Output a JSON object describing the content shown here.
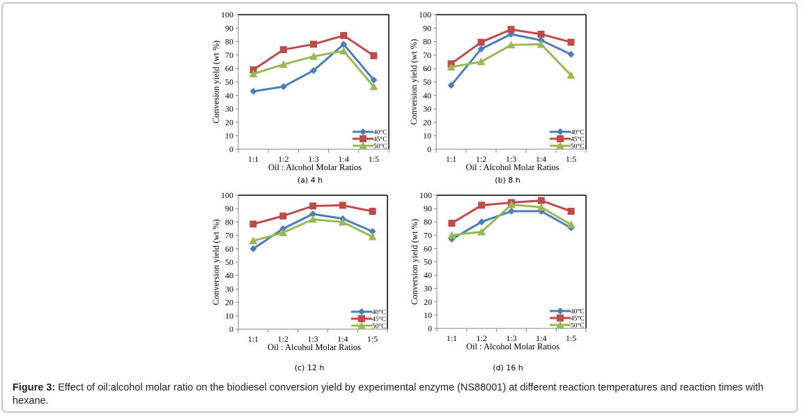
{
  "figure": {
    "caption_label": "Figure 3:",
    "caption_text": " Effect of oil:alcohol molar ratio on the biodiesel conversion yield by experimental enzyme (NS88001) at different reaction temperatures and reaction times with hexane."
  },
  "colors": {
    "40°C": "#4a7ebb",
    "45°C": "#be4b48",
    "50°C": "#98b954"
  },
  "chart_data": [
    {
      "type": "line",
      "title": "(a) 4 h",
      "xlabel": "Oil : Alcohol Molar Ratios",
      "ylabel": "Convesion yield (wt %)",
      "categories": [
        "1:1",
        "1:2",
        "1:3",
        "1:4",
        "1:5"
      ],
      "ylim": [
        0,
        100
      ],
      "yticks": [
        0,
        10,
        20,
        30,
        40,
        50,
        60,
        70,
        80,
        90,
        100
      ],
      "grid": false,
      "legend": "bottom-right",
      "series": [
        {
          "name": "40°C",
          "marker": "diamond",
          "values": [
            43,
            46.5,
            58.5,
            78,
            51.5
          ]
        },
        {
          "name": "45°C",
          "marker": "square",
          "values": [
            59,
            74,
            78,
            84.5,
            69.5
          ]
        },
        {
          "name": "50°C",
          "marker": "triangle",
          "values": [
            56,
            63,
            69,
            73,
            46.5
          ]
        }
      ]
    },
    {
      "type": "line",
      "title": "(b) 8 h",
      "xlabel": "Oil : Alcohol Molar Ratios",
      "ylabel": "Conversion yield (wt %)",
      "categories": [
        "1:1",
        "1:2",
        "1:3",
        "1:4",
        "1:5"
      ],
      "ylim": [
        0,
        100
      ],
      "yticks": [
        0,
        10,
        20,
        30,
        40,
        50,
        60,
        70,
        80,
        90,
        100
      ],
      "grid": false,
      "legend": "bottom-right",
      "series": [
        {
          "name": "40°C",
          "marker": "diamond",
          "values": [
            47.5,
            74.5,
            85.5,
            81,
            70.5
          ]
        },
        {
          "name": "45°C",
          "marker": "square",
          "values": [
            63.5,
            79.5,
            89,
            85.5,
            79.5
          ]
        },
        {
          "name": "50°C",
          "marker": "triangle",
          "values": [
            61,
            65,
            77.5,
            78,
            55
          ]
        }
      ]
    },
    {
      "type": "line",
      "title": "(c) 12 h",
      "xlabel": "Oil : Alcohol Molar Ratios",
      "ylabel": "Conversion yield (wt %)",
      "categories": [
        "1:1",
        "1:2",
        "1:3",
        "1:4",
        "1:5"
      ],
      "ylim": [
        0,
        100
      ],
      "yticks": [
        0,
        10,
        20,
        30,
        40,
        50,
        60,
        70,
        80,
        90,
        100
      ],
      "grid": false,
      "legend": "bottom-right",
      "series": [
        {
          "name": "40°C",
          "marker": "diamond",
          "values": [
            60,
            75,
            86,
            82.5,
            73
          ]
        },
        {
          "name": "45°C",
          "marker": "square",
          "values": [
            78.5,
            84.5,
            92,
            92.5,
            88
          ]
        },
        {
          "name": "50°C",
          "marker": "triangle",
          "values": [
            66,
            72,
            82,
            80,
            69
          ]
        }
      ]
    },
    {
      "type": "line",
      "title": "(d) 16 h",
      "xlabel": "Oil : Alcohol Molar Ratios",
      "ylabel": "Conversion yield (wt %)",
      "categories": [
        "1:1",
        "1:2",
        "1:3",
        "1:4",
        "1:5"
      ],
      "ylim": [
        0,
        100
      ],
      "yticks": [
        0,
        10,
        20,
        30,
        40,
        50,
        60,
        70,
        80,
        90,
        100
      ],
      "grid": false,
      "legend": "bottom-right",
      "series": [
        {
          "name": "40°C",
          "marker": "diamond",
          "values": [
            67,
            80,
            88,
            88,
            75.5
          ]
        },
        {
          "name": "45°C",
          "marker": "square",
          "values": [
            79,
            92.5,
            94.5,
            96,
            88
          ]
        },
        {
          "name": "50°C",
          "marker": "triangle",
          "values": [
            70,
            72.5,
            93,
            91,
            78
          ]
        }
      ]
    }
  ]
}
